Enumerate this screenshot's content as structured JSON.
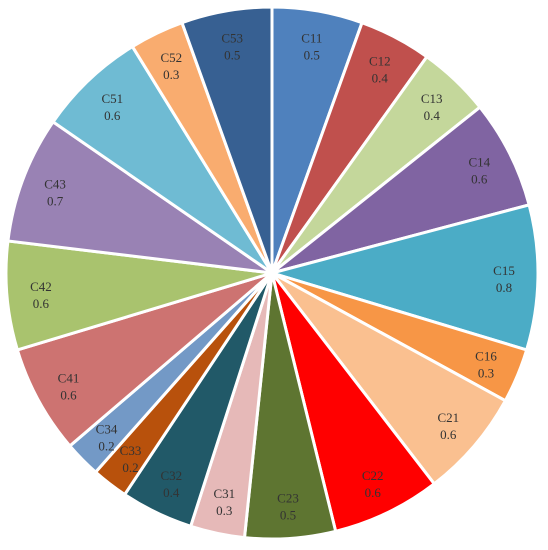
{
  "chart_data": {
    "type": "pie",
    "title": "",
    "start_angle_deg": 0,
    "direction": "clockwise",
    "slices": [
      {
        "label": "C11",
        "value": 0.5,
        "value_label": "0.5",
        "color": "#4f81bd"
      },
      {
        "label": "C12",
        "value": 0.4,
        "value_label": "0.4",
        "color": "#c0504d"
      },
      {
        "label": "C13",
        "value": 0.4,
        "value_label": "0.4",
        "color": "#c4d79b"
      },
      {
        "label": "C14",
        "value": 0.6,
        "value_label": "0.6",
        "color": "#8064a2"
      },
      {
        "label": "C15",
        "value": 0.8,
        "value_label": "0.8",
        "color": "#4bacc6"
      },
      {
        "label": "C16",
        "value": 0.3,
        "value_label": "0.3",
        "color": "#f79646"
      },
      {
        "label": "C21",
        "value": 0.6,
        "value_label": "0.6",
        "color": "#fac090"
      },
      {
        "label": "C22",
        "value": 0.6,
        "value_label": "0.6",
        "color": "#ff0000"
      },
      {
        "label": "C23",
        "value": 0.5,
        "value_label": "0.5",
        "color": "#5e7531"
      },
      {
        "label": "C31",
        "value": 0.3,
        "value_label": "0.3",
        "color": "#e6b9b8"
      },
      {
        "label": "C32",
        "value": 0.4,
        "value_label": "0.4",
        "color": "#215968"
      },
      {
        "label": "C33",
        "value": 0.2,
        "value_label": "0.2",
        "color": "#b8510c"
      },
      {
        "label": "C34",
        "value": 0.2,
        "value_label": "0.2",
        "color": "#7399c6"
      },
      {
        "label": "C41",
        "value": 0.6,
        "value_label": "0.6",
        "color": "#cd7371"
      },
      {
        "label": "C42",
        "value": 0.6,
        "value_label": "0.6",
        "color": "#a9c36e"
      },
      {
        "label": "C43",
        "value": 0.7,
        "value_label": "0.7",
        "color": "#9982b4"
      },
      {
        "label": "C51",
        "value": 0.6,
        "value_label": "0.6",
        "color": "#6fbbd3"
      },
      {
        "label": "C52",
        "value": 0.3,
        "value_label": "0.3",
        "color": "#f9ac6f"
      },
      {
        "label": "C53",
        "value": 0.5,
        "value_label": "0.5",
        "color": "#376092"
      }
    ]
  }
}
